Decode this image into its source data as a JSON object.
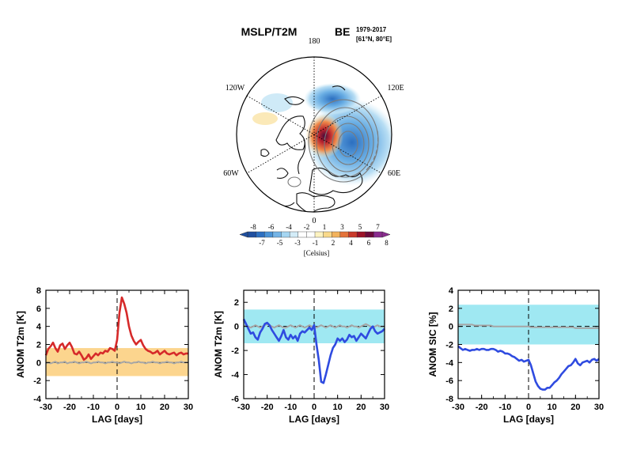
{
  "map": {
    "title_left": "MSLP/T2M",
    "title_right": "BE",
    "years": "1979-2017",
    "location": "[61°N, 80°E]",
    "lon_labels": [
      "180",
      "120W",
      "120E",
      "60W",
      "60E",
      "0"
    ]
  },
  "colorbar": {
    "unit_label": "[Celsius]",
    "top_ticks": [
      "-8",
      "-6",
      "-4",
      "-2",
      "1",
      "3",
      "5",
      "7"
    ],
    "bottom_ticks": [
      "-7",
      "-5",
      "-3",
      "-1",
      "2",
      "4",
      "6",
      "8"
    ],
    "colors": [
      "#1f4fa0",
      "#2c6fc0",
      "#4a93d6",
      "#74b4e6",
      "#a6d6f2",
      "#d3ecf8",
      "#ffffff",
      "#ffffff",
      "#fdf3c0",
      "#f9d98a",
      "#f3b35c",
      "#e4733a",
      "#c93a2b",
      "#9c1228",
      "#6b0a3c",
      "#8a2c8f"
    ]
  },
  "chart_data": [
    {
      "type": "line",
      "xlabel": "LAG [days]",
      "ylabel": "ANOM T2m [K]",
      "xlim": [
        -30,
        30
      ],
      "ylim": [
        -4,
        8
      ],
      "xticks": [
        -30,
        -20,
        -10,
        0,
        10,
        20,
        30
      ],
      "yticks": [
        -4,
        -2,
        0,
        2,
        4,
        6,
        8
      ],
      "x": [
        -30,
        -29,
        -28,
        -27,
        -26,
        -25,
        -24,
        -23,
        -22,
        -21,
        -20,
        -19,
        -18,
        -17,
        -16,
        -15,
        -14,
        -13,
        -12,
        -11,
        -10,
        -9,
        -8,
        -7,
        -6,
        -5,
        -4,
        -3,
        -2,
        -1,
        0,
        1,
        2,
        3,
        4,
        5,
        6,
        7,
        8,
        9,
        10,
        11,
        12,
        13,
        14,
        15,
        16,
        17,
        18,
        19,
        20,
        21,
        22,
        23,
        24,
        25,
        26,
        27,
        28,
        29,
        30
      ],
      "series": [
        {
          "values": [
            0.8,
            1.5,
            1.8,
            2.2,
            1.6,
            1.2,
            1.9,
            2.1,
            1.5,
            1.9,
            2.2,
            1.7,
            1.0,
            0.9,
            1.2,
            0.8,
            0.3,
            0.5,
            0.9,
            0.4,
            0.7,
            1.0,
            0.8,
            1.1,
            1.0,
            1.3,
            1.2,
            1.6,
            1.5,
            1.3,
            2.5,
            5.5,
            7.2,
            6.5,
            5.5,
            4.0,
            3.0,
            2.4,
            2.0,
            2.3,
            2.5,
            1.9,
            1.5,
            1.3,
            1.2,
            1.0,
            1.1,
            1.3,
            0.9,
            1.1,
            1.3,
            1.0,
            0.9,
            1.0,
            1.1,
            0.8,
            1.0,
            1.1,
            0.9,
            1.0,
            1.0
          ],
          "color": "#d62a2a"
        },
        {
          "values": [
            -0.1,
            0.0,
            -0.1,
            0.0,
            0.1,
            -0.1,
            0.0,
            0.0,
            0.1,
            -0.1,
            0.0,
            0.0,
            0.1,
            0.0,
            -0.1,
            0.0,
            0.0,
            0.1,
            0.0,
            -0.1,
            0.0,
            0.0,
            0.1,
            0.0,
            0.0,
            -0.1,
            0.0,
            0.0,
            0.1,
            0.0,
            0.0,
            -0.1,
            0.0,
            0.1,
            0.0,
            0.0,
            -0.1,
            0.0,
            0.0,
            0.1,
            0.0,
            0.0,
            -0.1,
            0.0,
            0.0,
            0.1,
            0.0,
            0.0,
            -0.1,
            0.0,
            0.0,
            0.1,
            0.0,
            0.0,
            -0.1,
            0.0,
            0.0,
            0.1,
            0.0,
            0.0,
            0.0
          ],
          "color": "#a6a6a6"
        }
      ],
      "band": {
        "lower": -1.5,
        "upper": 1.6,
        "color": "#fcd58e"
      }
    },
    {
      "type": "line",
      "xlabel": "LAG [days]",
      "ylabel": "ANOM T2m [K]",
      "xlim": [
        -30,
        30
      ],
      "ylim": [
        -6,
        3
      ],
      "xticks": [
        -30,
        -20,
        -10,
        0,
        10,
        20,
        30
      ],
      "yticks": [
        -6,
        -4,
        -2,
        0,
        2
      ],
      "x": [
        -30,
        -29,
        -28,
        -27,
        -26,
        -25,
        -24,
        -23,
        -22,
        -21,
        -20,
        -19,
        -18,
        -17,
        -16,
        -15,
        -14,
        -13,
        -12,
        -11,
        -10,
        -9,
        -8,
        -7,
        -6,
        -5,
        -4,
        -3,
        -2,
        -1,
        0,
        1,
        2,
        3,
        4,
        5,
        6,
        7,
        8,
        9,
        10,
        11,
        12,
        13,
        14,
        15,
        16,
        17,
        18,
        19,
        20,
        21,
        22,
        23,
        24,
        25,
        26,
        27,
        28,
        29,
        30
      ],
      "series": [
        {
          "values": [
            0.6,
            0.2,
            -0.2,
            -0.6,
            -0.5,
            -0.9,
            -1.1,
            -0.5,
            -0.2,
            0.2,
            0.3,
            0.1,
            -0.3,
            -0.6,
            -0.9,
            -1.2,
            -0.8,
            -0.3,
            -0.9,
            -1.1,
            -0.7,
            -1.0,
            -0.8,
            -1.2,
            -0.6,
            -0.4,
            -0.5,
            -0.3,
            -0.1,
            -0.3,
            0.1,
            -1.5,
            -2.8,
            -4.6,
            -4.7,
            -4.0,
            -3.2,
            -2.4,
            -1.8,
            -1.5,
            -1.0,
            -1.2,
            -1.0,
            -1.3,
            -1.1,
            -0.7,
            -0.9,
            -0.8,
            -1.2,
            -0.9,
            -0.6,
            -0.8,
            -1.0,
            -0.6,
            -0.2,
            0.0,
            -0.4,
            -0.6,
            -0.5,
            -0.4,
            -0.2
          ],
          "color": "#2f4be0"
        },
        {
          "values": [
            0.0,
            0.1,
            0.0,
            -0.1,
            0.0,
            0.1,
            0.0,
            -0.1,
            0.0,
            0.1,
            0.2,
            0.1,
            0.0,
            -0.1,
            0.0,
            0.1,
            0.0,
            -0.1,
            -0.1,
            0.0,
            0.1,
            0.0,
            -0.1,
            0.0,
            0.1,
            0.0,
            -0.1,
            0.0,
            0.1,
            0.0,
            0.0,
            -0.1,
            0.0,
            0.1,
            0.0,
            -0.1,
            0.0,
            0.1,
            0.0,
            -0.1,
            0.0,
            0.1,
            0.0,
            0.0,
            -0.1,
            0.0,
            0.1,
            0.0,
            0.0,
            -0.1,
            0.0,
            0.1,
            0.2,
            0.1,
            0.0,
            -0.1,
            0.0,
            0.1,
            0.0,
            0.0,
            0.0
          ],
          "color": "#a6a6a6"
        }
      ],
      "band": {
        "lower": -1.4,
        "upper": 1.4,
        "color": "#9fe8f2"
      }
    },
    {
      "type": "line",
      "xlabel": "LAG [days]",
      "ylabel": "ANOM SIC [%]",
      "xlim": [
        -30,
        30
      ],
      "ylim": [
        -8,
        4
      ],
      "xticks": [
        -30,
        -20,
        -10,
        0,
        10,
        20,
        30
      ],
      "yticks": [
        -8,
        -6,
        -4,
        -2,
        0,
        2,
        4
      ],
      "x": [
        -30,
        -29,
        -28,
        -27,
        -26,
        -25,
        -24,
        -23,
        -22,
        -21,
        -20,
        -19,
        -18,
        -17,
        -16,
        -15,
        -14,
        -13,
        -12,
        -11,
        -10,
        -9,
        -8,
        -7,
        -6,
        -5,
        -4,
        -3,
        -2,
        -1,
        0,
        1,
        2,
        3,
        4,
        5,
        6,
        7,
        8,
        9,
        10,
        11,
        12,
        13,
        14,
        15,
        16,
        17,
        18,
        19,
        20,
        21,
        22,
        23,
        24,
        25,
        26,
        27,
        28,
        29,
        30
      ],
      "series": [
        {
          "values": [
            -2.2,
            -2.4,
            -2.6,
            -2.5,
            -2.6,
            -2.7,
            -2.6,
            -2.6,
            -2.5,
            -2.6,
            -2.5,
            -2.5,
            -2.6,
            -2.6,
            -2.5,
            -2.5,
            -2.6,
            -2.8,
            -2.7,
            -2.8,
            -3.0,
            -3.0,
            -3.1,
            -3.3,
            -3.4,
            -3.6,
            -3.8,
            -3.7,
            -3.9,
            -3.8,
            -3.7,
            -4.3,
            -5.2,
            -6.1,
            -6.6,
            -6.9,
            -7.0,
            -7.0,
            -6.8,
            -6.8,
            -6.5,
            -6.2,
            -6.0,
            -5.7,
            -5.3,
            -5.0,
            -4.7,
            -4.4,
            -4.3,
            -4.0,
            -3.6,
            -4.1,
            -4.3,
            -4.0,
            -3.9,
            -3.8,
            -4.0,
            -3.7,
            -3.6,
            -3.8,
            -3.6
          ],
          "color": "#2f4be0"
        },
        {
          "values": [
            0.2,
            0.2,
            0.2,
            0.2,
            0.2,
            0.2,
            0.2,
            0.1,
            0.1,
            0.1,
            0.1,
            0.1,
            0.1,
            0.1,
            0.1,
            0.0,
            0.0,
            0.0,
            0.0,
            0.0,
            0.0,
            0.0,
            0.0,
            0.0,
            0.0,
            0.0,
            0.0,
            0.0,
            0.0,
            0.0,
            0.0,
            -0.1,
            -0.1,
            -0.1,
            -0.1,
            -0.1,
            -0.1,
            -0.1,
            -0.1,
            -0.1,
            -0.1,
            -0.1,
            -0.1,
            -0.1,
            -0.1,
            -0.1,
            -0.1,
            -0.1,
            -0.1,
            -0.1,
            -0.2,
            -0.2,
            -0.2,
            -0.2,
            -0.2,
            -0.2,
            -0.2,
            -0.2,
            -0.2,
            -0.2,
            -0.2
          ],
          "color": "#a6a6a6"
        }
      ],
      "band": {
        "lower": -2.0,
        "upper": 2.4,
        "color": "#9fe8f2"
      }
    }
  ]
}
